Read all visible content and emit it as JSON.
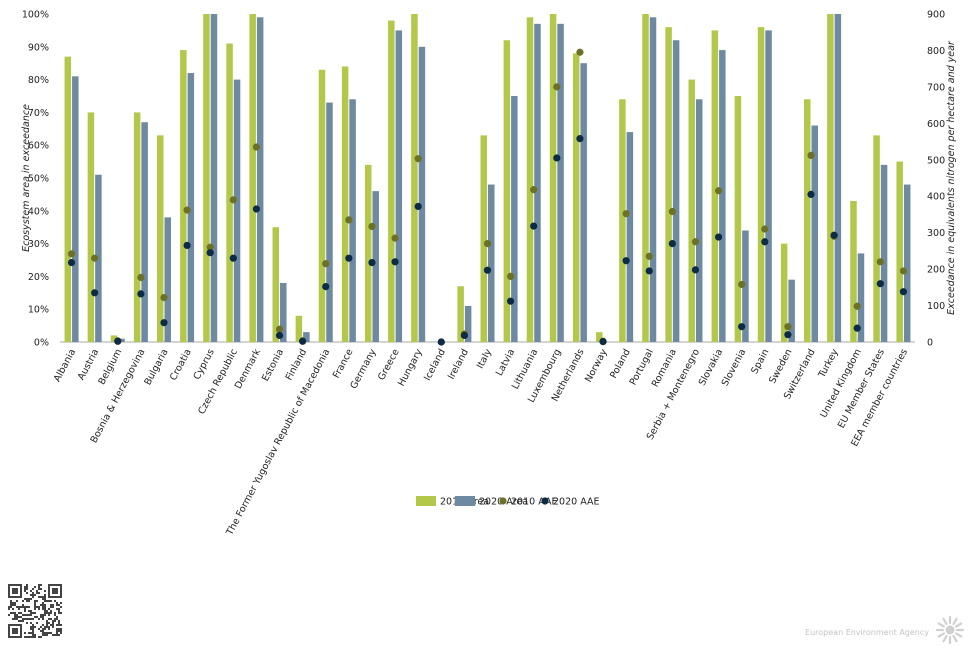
{
  "chart_data": {
    "type": "bar",
    "categories": [
      "Albania",
      "Austria",
      "Belgium",
      "Bosnia & Herzegovina",
      "Bulgaria",
      "Croatia",
      "Cyprus",
      "Czech Republic",
      "Denmark",
      "Estonia",
      "Finland",
      "The Former Yugoslav Republic of Macedonia",
      "France",
      "Germany",
      "Greece",
      "Hungary",
      "Iceland",
      "Ireland",
      "Italy",
      "Latvia",
      "Lithuania",
      "Luxembourg",
      "Netherlands",
      "Norway",
      "Poland",
      "Portugal",
      "Romania",
      "Serbia + Montenegro",
      "Slovakia",
      "Slovenia",
      "Spain",
      "Sweden",
      "Switzerland",
      "Turkey",
      "United Kingdom",
      "EU Member States",
      "EEA member countries"
    ],
    "series": [
      {
        "name": "2010 Area",
        "axis": "left",
        "kind": "bar",
        "color": "#b3c84a",
        "values": [
          87,
          70,
          2,
          70,
          63,
          89,
          100,
          91,
          100,
          35,
          8,
          83,
          84,
          54,
          98,
          100,
          0,
          17,
          63,
          92,
          99,
          100,
          88,
          3,
          74,
          100,
          96,
          80,
          95,
          75,
          96,
          30,
          74,
          100,
          43,
          63,
          55
        ]
      },
      {
        "name": "2020 Area",
        "axis": "left",
        "kind": "bar",
        "color": "#6e8aa2",
        "values": [
          81,
          51,
          1,
          67,
          38,
          82,
          100,
          80,
          99,
          18,
          3,
          73,
          74,
          46,
          95,
          90,
          0,
          11,
          48,
          75,
          97,
          97,
          85,
          0,
          64,
          99,
          92,
          74,
          89,
          34,
          95,
          19,
          66,
          100,
          27,
          54,
          48
        ]
      },
      {
        "name": "2010 AAE",
        "axis": "right",
        "kind": "dot",
        "color": "#6d7126",
        "values": [
          242,
          230,
          3,
          177,
          122,
          362,
          260,
          390,
          535,
          35,
          3,
          215,
          335,
          317,
          285,
          503,
          0,
          22,
          270,
          180,
          418,
          700,
          795,
          2,
          352,
          235,
          358,
          275,
          415,
          158,
          310,
          42,
          512,
          290,
          98,
          220,
          195
        ]
      },
      {
        "name": "2020 AAE",
        "axis": "right",
        "kind": "dot",
        "color": "#0d2b45",
        "values": [
          218,
          135,
          2,
          132,
          53,
          265,
          245,
          230,
          365,
          18,
          2,
          152,
          230,
          218,
          220,
          372,
          0,
          18,
          197,
          112,
          318,
          505,
          558,
          1,
          223,
          195,
          270,
          198,
          288,
          42,
          275,
          20,
          405,
          293,
          38,
          160,
          138
        ]
      }
    ],
    "title": "",
    "xlabel": "",
    "ylabel": "Ecosystem area in exceedance",
    "y2label": "Exceedance in equivalents nitrogen per hectare and year",
    "ylim": [
      0,
      100
    ],
    "y2lim": [
      0,
      900
    ],
    "yticks": [
      "0%",
      "10%",
      "20%",
      "30%",
      "40%",
      "50%",
      "60%",
      "70%",
      "80%",
      "90%",
      "100%"
    ],
    "y2ticks": [
      "0",
      "100",
      "200",
      "300",
      "400",
      "500",
      "600",
      "700",
      "800",
      "900"
    ],
    "legend_labels": [
      "2010 Area",
      "2020 Area",
      "2010 AAE",
      "2020 AAE"
    ],
    "legend_position": "bottom-center",
    "grid": false
  },
  "footer": {
    "attribution": "European Environment Agency"
  }
}
